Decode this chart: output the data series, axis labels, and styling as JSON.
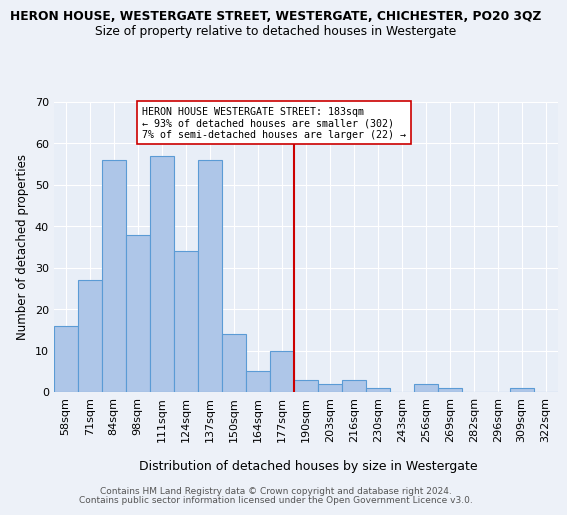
{
  "title": "HERON HOUSE, WESTERGATE STREET, WESTERGATE, CHICHESTER, PO20 3QZ",
  "subtitle": "Size of property relative to detached houses in Westergate",
  "xlabel": "Distribution of detached houses by size in Westergate",
  "ylabel": "Number of detached properties",
  "bin_labels": [
    "58sqm",
    "71sqm",
    "84sqm",
    "98sqm",
    "111sqm",
    "124sqm",
    "137sqm",
    "150sqm",
    "164sqm",
    "177sqm",
    "190sqm",
    "203sqm",
    "216sqm",
    "230sqm",
    "243sqm",
    "256sqm",
    "269sqm",
    "282sqm",
    "296sqm",
    "309sqm",
    "322sqm"
  ],
  "bar_heights": [
    16,
    27,
    56,
    38,
    57,
    34,
    56,
    14,
    5,
    10,
    3,
    2,
    3,
    1,
    0,
    2,
    1,
    0,
    0,
    1,
    0
  ],
  "bar_color": "#aec6e8",
  "bar_edge_color": "#5b9bd5",
  "vline_x": 9.5,
  "vline_color": "#cc0000",
  "annotation_text": "HERON HOUSE WESTERGATE STREET: 183sqm\n← 93% of detached houses are smaller (302)\n7% of semi-detached houses are larger (22) →",
  "annotation_box_color": "#ffffff",
  "annotation_box_edge_color": "#cc0000",
  "ylim": [
    0,
    70
  ],
  "yticks": [
    0,
    10,
    20,
    30,
    40,
    50,
    60,
    70
  ],
  "background_color": "#e8eef7",
  "fig_background_color": "#edf1f8",
  "grid_color": "#ffffff",
  "footer_line1": "Contains HM Land Registry data © Crown copyright and database right 2024.",
  "footer_line2": "Contains public sector information licensed under the Open Government Licence v3.0."
}
